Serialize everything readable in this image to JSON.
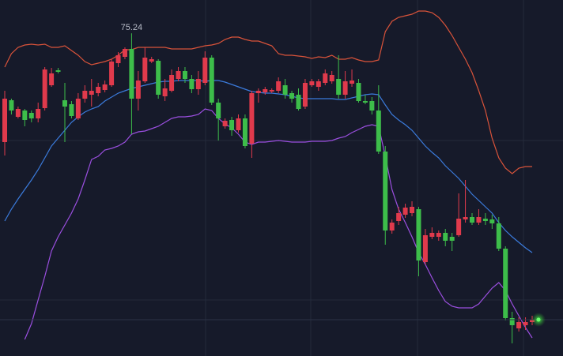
{
  "chart_data": {
    "type": "candlestick",
    "ylim": [
      54.8,
      77.35
    ],
    "up_color": "#e03a4c",
    "down_color": "#3dbd4a",
    "open": [
      68.35,
      71.0,
      69.95,
      70.35,
      70.2,
      69.85,
      70.5,
      71.95,
      72.9,
      71.0,
      70.75,
      69.85,
      71.1,
      71.35,
      71.45,
      71.65,
      71.95,
      73.35,
      73.75,
      74.25,
      71.1,
      72.2,
      73.45,
      73.5,
      71.25,
      71.6,
      72.35,
      72.85,
      72.35,
      71.7,
      72.1,
      73.7,
      70.85,
      69.35,
      69.75,
      69.1,
      69.85,
      68.25,
      71.45,
      71.5,
      71.55,
      71.6,
      71.95,
      71.45,
      71.35,
      70.6,
      71.95,
      71.85,
      72.1,
      72.2,
      72.35,
      71.35,
      72.05,
      72.1,
      70.95,
      70.95,
      70.35,
      67.75,
      62.75,
      63.35,
      63.75,
      63.85,
      64.1,
      60.75,
      62.35,
      62.35,
      62.6,
      62.35,
      62.45,
      63.45,
      63.6,
      63.25,
      63.5,
      63.45,
      63.2,
      61.6,
      57.2,
      56.55,
      56.75,
      56.95
    ],
    "high": [
      71.6,
      71.1,
      70.6,
      70.45,
      70.35,
      70.85,
      73.1,
      73.05,
      73.05,
      72.1,
      70.95,
      71.45,
      71.95,
      72.35,
      72.1,
      72.25,
      73.6,
      74.05,
      74.35,
      75.24,
      72.85,
      74.35,
      73.75,
      73.6,
      72.35,
      72.95,
      73.1,
      73.1,
      72.6,
      72.85,
      74.1,
      73.85,
      71.1,
      69.85,
      69.95,
      70.1,
      70.1,
      71.6,
      71.75,
      71.85,
      71.75,
      72.45,
      72.35,
      71.6,
      71.75,
      72.35,
      72.35,
      72.35,
      72.95,
      72.85,
      73.85,
      72.85,
      72.95,
      72.35,
      71.35,
      71.2,
      71.95,
      68.1,
      63.45,
      64.25,
      64.45,
      64.6,
      64.25,
      62.85,
      62.95,
      62.75,
      62.85,
      62.6,
      65.1,
      65.95,
      63.85,
      64.1,
      63.85,
      63.75,
      63.6,
      61.75,
      57.6,
      57.25,
      57.25,
      57.35
    ],
    "low": [
      67.5,
      70.1,
      69.85,
      69.35,
      69.6,
      69.6,
      70.35,
      71.85,
      72.7,
      68.35,
      69.85,
      69.75,
      70.85,
      70.6,
      71.25,
      71.5,
      71.85,
      73.1,
      73.6,
      68.85,
      70.35,
      72.1,
      73.35,
      71.1,
      70.95,
      71.5,
      72.2,
      72.1,
      71.45,
      71.35,
      71.95,
      70.7,
      68.45,
      69.2,
      68.75,
      68.95,
      67.95,
      67.35,
      70.85,
      71.35,
      71.45,
      71.45,
      71.1,
      70.85,
      70.35,
      70.45,
      71.85,
      71.6,
      71.95,
      72.05,
      71.1,
      71.1,
      71.85,
      70.85,
      70.75,
      70.1,
      67.6,
      61.85,
      62.55,
      63.1,
      63.55,
      63.65,
      59.85,
      60.6,
      62.2,
      62.1,
      61.75,
      61.45,
      62.35,
      63.25,
      63.1,
      63.1,
      63.1,
      62.85,
      61.45,
      57.05,
      55.6,
      56.35,
      56.45,
      56.75
    ],
    "close": [
      71.1,
      70.35,
      70.45,
      69.75,
      69.85,
      70.45,
      72.95,
      72.7,
      72.8,
      70.6,
      70.0,
      71.1,
      71.6,
      71.6,
      71.85,
      72.0,
      73.45,
      73.85,
      74.25,
      71.1,
      72.25,
      73.7,
      73.6,
      71.35,
      71.75,
      72.6,
      72.85,
      72.35,
      71.7,
      72.35,
      73.7,
      70.85,
      69.85,
      69.7,
      69.1,
      69.85,
      68.1,
      71.45,
      71.6,
      71.7,
      71.65,
      72.2,
      71.35,
      71.1,
      70.45,
      72.1,
      72.2,
      72.2,
      72.7,
      72.6,
      71.35,
      72.2,
      72.25,
      70.95,
      70.85,
      70.35,
      67.75,
      62.75,
      63.25,
      63.85,
      64.2,
      64.25,
      60.85,
      62.45,
      62.6,
      62.6,
      62.1,
      62.1,
      63.5,
      63.6,
      63.25,
      63.6,
      63.35,
      63.2,
      61.6,
      57.2,
      56.75,
      56.95,
      56.95,
      57.1
    ],
    "lines": [
      {
        "color": "#d9533a",
        "values": [
          73.1,
          73.95,
          74.35,
          74.5,
          74.55,
          74.5,
          74.55,
          74.35,
          74.35,
          74.45,
          74.15,
          73.85,
          73.45,
          73.25,
          73.35,
          73.45,
          73.6,
          73.85,
          74.2,
          74.2,
          74.35,
          74.35,
          74.35,
          74.35,
          74.35,
          74.25,
          74.25,
          74.25,
          74.25,
          74.35,
          74.45,
          74.5,
          74.6,
          74.85,
          75.0,
          75.0,
          74.85,
          74.75,
          74.75,
          74.6,
          74.45,
          73.95,
          73.85,
          73.85,
          73.8,
          73.75,
          73.65,
          73.75,
          73.7,
          73.85,
          73.6,
          73.6,
          73.7,
          73.55,
          73.45,
          73.45,
          73.55,
          75.35,
          76.0,
          76.25,
          76.35,
          76.45,
          76.65,
          76.65,
          76.55,
          76.25,
          75.75,
          75.1,
          74.35,
          73.6,
          72.75,
          71.6,
          70.35,
          68.6,
          67.35,
          66.7,
          66.35,
          66.7,
          66.8,
          66.8
        ]
      },
      {
        "color": "#3b7bdc",
        "values": [
          63.35,
          64.1,
          64.75,
          65.35,
          65.95,
          66.6,
          67.35,
          68.1,
          68.6,
          69.1,
          69.6,
          69.95,
          70.25,
          70.45,
          70.6,
          70.95,
          71.2,
          71.45,
          71.6,
          71.75,
          71.85,
          71.95,
          72.05,
          72.15,
          72.2,
          72.2,
          72.25,
          72.25,
          72.25,
          72.25,
          72.2,
          72.25,
          72.25,
          72.15,
          72.0,
          71.85,
          71.7,
          71.55,
          71.5,
          71.45,
          71.45,
          71.4,
          71.35,
          71.25,
          71.15,
          71.1,
          71.1,
          71.1,
          71.1,
          71.1,
          71.05,
          71.05,
          71.15,
          71.25,
          71.35,
          71.4,
          71.35,
          70.7,
          70.1,
          69.75,
          69.45,
          69.1,
          68.6,
          68.1,
          67.7,
          67.35,
          66.85,
          66.45,
          66.05,
          65.55,
          65.05,
          64.65,
          64.25,
          63.85,
          63.25,
          62.75,
          62.35,
          62.0,
          61.65,
          61.35
        ]
      },
      {
        "color": "#9b4fe0",
        "values": [
          null,
          null,
          null,
          55.85,
          56.85,
          58.35,
          59.85,
          61.45,
          62.35,
          63.1,
          63.85,
          64.75,
          65.95,
          67.25,
          67.45,
          67.85,
          67.95,
          68.1,
          68.35,
          68.85,
          69.0,
          69.05,
          69.2,
          69.35,
          69.6,
          69.85,
          69.95,
          69.95,
          70.0,
          70.1,
          70.45,
          70.35,
          69.85,
          69.5,
          69.25,
          68.85,
          68.35,
          68.2,
          68.35,
          68.35,
          68.4,
          68.45,
          68.4,
          68.35,
          68.35,
          68.35,
          68.4,
          68.4,
          68.4,
          68.45,
          68.6,
          68.7,
          68.95,
          69.15,
          69.35,
          69.45,
          69.35,
          67.45,
          65.35,
          64.1,
          63.25,
          62.35,
          61.35,
          60.6,
          59.75,
          58.95,
          58.25,
          57.95,
          57.85,
          57.85,
          57.85,
          58.1,
          58.6,
          59.1,
          59.45,
          58.95,
          58.1,
          57.35,
          56.6,
          55.95
        ]
      }
    ]
  }
}
